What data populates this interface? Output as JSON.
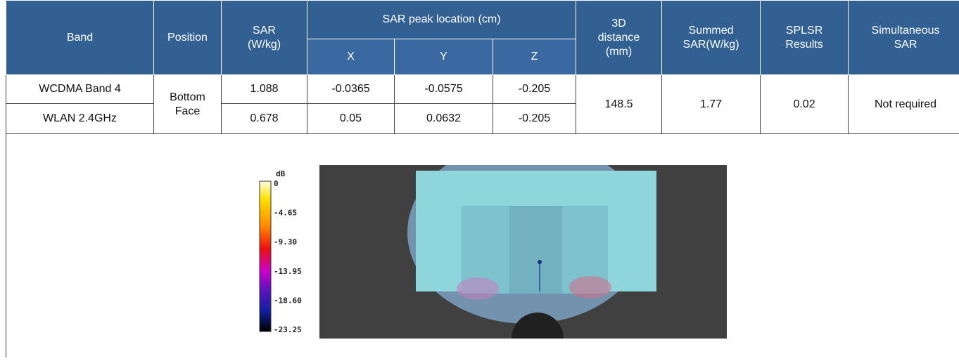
{
  "table": {
    "header": {
      "band": "Band",
      "position": "Position",
      "sar": "SAR\n(W/kg)",
      "peak": "SAR peak location (cm)",
      "x": "X",
      "y": "Y",
      "z": "Z",
      "distance": "3D\ndistance\n(mm)",
      "summed": "Summed\nSAR(W/kg)",
      "splsr": "SPLSR\nResults",
      "simultaneous": "Simultaneous\nSAR"
    },
    "rows": [
      [
        "WCDMA Band 4",
        "Bottom\nFace",
        "1.088",
        "-0.0365",
        "-0.0575",
        "-0.205",
        "148.5",
        "1.77",
        "0.02",
        "Not required"
      ],
      [
        "WLAN 2.4GHz",
        "0.678",
        "0.05",
        "0.0632",
        "-0.205"
      ]
    ]
  },
  "figure": {
    "colorbar": {
      "unit": "dB",
      "labels": [
        "0",
        "-4.65",
        "-9.30",
        "-13.95",
        "-18.60",
        "-23.25"
      ]
    }
  }
}
